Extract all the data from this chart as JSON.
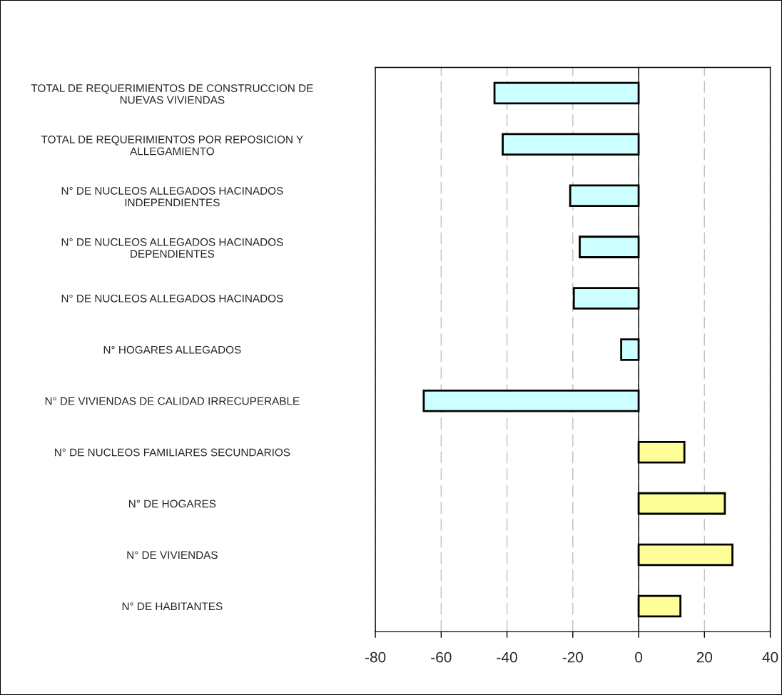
{
  "chart_data": {
    "type": "bar",
    "orientation": "horizontal",
    "categories": [
      "TOTAL DE REQUERIMIENTOS DE CONSTRUCCION DE\nNUEVAS VIVIENDAS",
      "TOTAL DE REQUERIMIENTOS POR REPOSICION Y\nALLEGAMIENTO",
      "N° DE NUCLEOS ALLEGADOS HACINADOS\nINDEPENDIENTES",
      "N° DE NUCLEOS ALLEGADOS HACINADOS\nDEPENDIENTES",
      "N° DE NUCLEOS ALLEGADOS HACINADOS",
      "N° HOGARES ALLEGADOS",
      "N° DE VIVIENDAS DE CALIDAD IRRECUPERABLE",
      "N° DE NUCLEOS FAMILIARES SECUNDARIOS",
      "N° DE HOGARES",
      "N° DE VIVIENDAS",
      "N° DE HABITANTES"
    ],
    "values": [
      -43.8,
      -41.3,
      -20.8,
      -17.9,
      -19.7,
      -5.3,
      -65.3,
      13.9,
      26.2,
      28.5,
      12.7
    ],
    "colors": [
      "#ccffff",
      "#ccffff",
      "#ccffff",
      "#ccffff",
      "#ccffff",
      "#ccffff",
      "#ccffff",
      "#ffff99",
      "#ffff99",
      "#ffff99",
      "#ffff99"
    ],
    "xlim": [
      -80,
      40
    ],
    "xticks": [
      -80,
      -60,
      -40,
      -20,
      0,
      20,
      40
    ],
    "grid": "x"
  }
}
